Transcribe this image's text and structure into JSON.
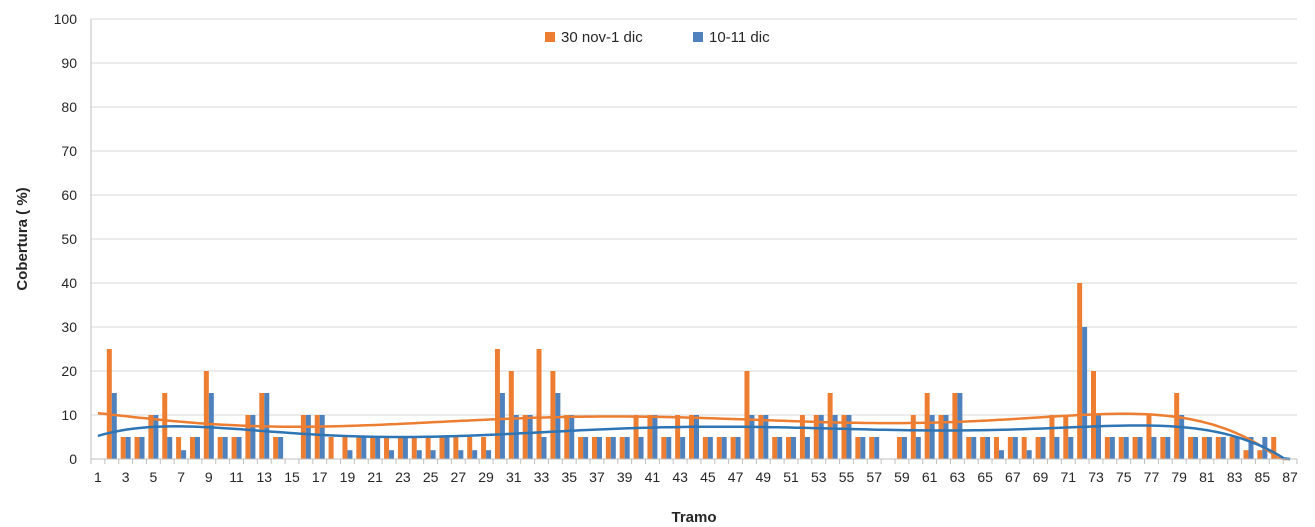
{
  "chart_data": {
    "type": "bar",
    "xlabel": "Tramo",
    "ylabel": "Cobertura ( %)",
    "ylim": [
      0,
      100
    ],
    "yticks": [
      0,
      10,
      20,
      30,
      40,
      50,
      60,
      70,
      80,
      90,
      100
    ],
    "grid": true,
    "legend_position": "top-center",
    "categories": [
      1,
      2,
      3,
      4,
      5,
      6,
      7,
      8,
      9,
      10,
      11,
      12,
      13,
      14,
      15,
      16,
      17,
      18,
      19,
      20,
      21,
      22,
      23,
      24,
      25,
      26,
      27,
      28,
      29,
      30,
      31,
      32,
      33,
      34,
      35,
      36,
      37,
      38,
      39,
      40,
      41,
      42,
      43,
      44,
      45,
      46,
      47,
      48,
      49,
      50,
      51,
      52,
      53,
      54,
      55,
      56,
      57,
      58,
      59,
      60,
      61,
      62,
      63,
      64,
      65,
      66,
      67,
      68,
      69,
      70,
      71,
      72,
      73,
      74,
      75,
      76,
      77,
      78,
      79,
      80,
      81,
      82,
      83,
      84,
      85,
      86,
      87
    ],
    "x_tick_labels": [
      "1",
      "3",
      "5",
      "7",
      "9",
      "11",
      "13",
      "15",
      "17",
      "19",
      "21",
      "23",
      "25",
      "27",
      "29",
      "31",
      "33",
      "35",
      "37",
      "39",
      "41",
      "43",
      "45",
      "47",
      "49",
      "51",
      "53",
      "55",
      "57",
      "59",
      "61",
      "63",
      "65",
      "67",
      "69",
      "71",
      "73",
      "75",
      "77",
      "79",
      "81",
      "83",
      "85",
      "87"
    ],
    "series": [
      {
        "name": "30 nov-1 dic",
        "color": "#ED7D31",
        "values": [
          0,
          25,
          5,
          5,
          10,
          15,
          5,
          5,
          20,
          5,
          5,
          10,
          15,
          5,
          0,
          10,
          10,
          5,
          5,
          5,
          5,
          5,
          5,
          5,
          5,
          5,
          5,
          5,
          5,
          25,
          20,
          10,
          25,
          20,
          10,
          5,
          5,
          5,
          5,
          10,
          10,
          5,
          10,
          10,
          5,
          5,
          5,
          20,
          10,
          5,
          5,
          10,
          10,
          15,
          10,
          5,
          5,
          0,
          5,
          10,
          15,
          10,
          15,
          5,
          5,
          5,
          5,
          5,
          5,
          10,
          10,
          40,
          20,
          5,
          5,
          5,
          10,
          5,
          15,
          5,
          5,
          5,
          5,
          2,
          2,
          5,
          0
        ]
      },
      {
        "name": "10-11 dic",
        "color": "#4F81BD",
        "values": [
          0,
          15,
          5,
          5,
          10,
          5,
          2,
          5,
          15,
          5,
          5,
          10,
          15,
          5,
          0,
          10,
          10,
          0,
          2,
          5,
          5,
          2,
          5,
          2,
          2,
          5,
          2,
          2,
          2,
          15,
          10,
          10,
          5,
          15,
          10,
          5,
          5,
          5,
          5,
          5,
          10,
          5,
          5,
          10,
          5,
          5,
          5,
          10,
          10,
          5,
          5,
          5,
          10,
          10,
          10,
          5,
          5,
          0,
          5,
          5,
          10,
          10,
          15,
          5,
          5,
          2,
          5,
          2,
          5,
          5,
          5,
          30,
          10,
          5,
          5,
          5,
          5,
          5,
          10,
          5,
          5,
          5,
          5,
          5,
          5,
          0,
          0
        ]
      }
    ],
    "trendlines": [
      {
        "series": "30 nov-1 dic",
        "type": "polynomial",
        "color": "#ED7D31"
      },
      {
        "series": "10-11 dic",
        "type": "polynomial",
        "color": "#2E75B6"
      }
    ]
  }
}
